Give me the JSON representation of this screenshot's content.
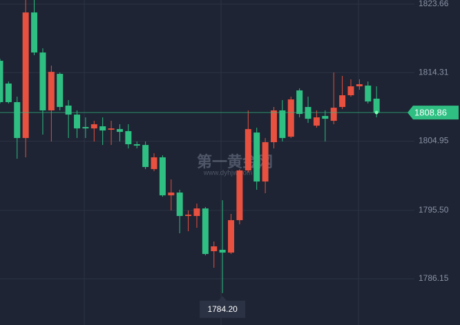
{
  "chart_data": {
    "type": "candlestick",
    "ylim": [
      1779.84,
      1824.23
    ],
    "yticks": [
      1823.66,
      1814.31,
      1804.95,
      {
        "value": 1795.5,
        "label": "1795.50"
      },
      1786.15
    ],
    "grid": true,
    "up_color": "#e8503f",
    "down_color": "#2fbf83",
    "open": [
      1815.93,
      1812.82,
      1810.28,
      1805.38,
      1822.53,
      1817.06,
      1809.15,
      1814.14,
      1809.81,
      1808.58,
      1806.88,
      1806.69,
      1806.98,
      1806.51,
      1806.6,
      1806.32,
      1804.53,
      1804.43,
      1801.13,
      1802.74,
      1797.55,
      1797.93,
      1794.73,
      1794.73,
      1795.76,
      1789.92,
      1790.11,
      1789.73,
      1794.16,
      1800.95,
      1806.13,
      1799.44,
      1804.81,
      1809.15,
      1805.56,
      1811.88,
      1809.62,
      1807.07,
      1808.39,
      1807.73,
      1809.62,
      1811.22,
      1812.44,
      1812.54,
      1810.75
    ],
    "high": [
      1816.21,
      1813.1,
      1811.03,
      1824.23,
      1824.23,
      1817.63,
      1815.27,
      1814.33,
      1810.56,
      1809.15,
      1808.2,
      1807.73,
      1808.2,
      1807.73,
      1807.26,
      1807.26,
      1804.9,
      1804.9,
      1803.3,
      1803.02,
      1799.72,
      1798.31,
      1795.48,
      1796.42,
      1795.95,
      1791.24,
      1796.89,
      1795.01,
      1801.13,
      1809.15,
      1806.79,
      1805.38,
      1809.62,
      1810.56,
      1811.03,
      1812.16,
      1811.03,
      1809.15,
      1809.15,
      1814.33,
      1813.86,
      1813.39,
      1813.39,
      1813.1,
      1812.44
    ],
    "low": [
      1810.09,
      1810.09,
      1802.55,
      1802.74,
      1816.69,
      1805.85,
      1804.9,
      1809.15,
      1805.38,
      1805.38,
      1805.38,
      1804.9,
      1804.43,
      1804.43,
      1804.9,
      1803.96,
      1803.96,
      1801.13,
      1800.85,
      1797.36,
      1795.48,
      1792.37,
      1792.65,
      1793.12,
      1789.35,
      1787.66,
      1784.2,
      1789.54,
      1793.59,
      1800.66,
      1798.31,
      1797.84,
      1803.96,
      1804.9,
      1805.38,
      1808.2,
      1807.45,
      1806.79,
      1804.9,
      1807.26,
      1809.33,
      1811.03,
      1811.97,
      1810.09,
      1808.2
    ],
    "close": [
      1810.28,
      1810.28,
      1805.38,
      1822.53,
      1817.06,
      1809.15,
      1814.42,
      1809.62,
      1808.58,
      1806.69,
      1806.69,
      1807.26,
      1806.41,
      1806.69,
      1806.22,
      1804.53,
      1804.34,
      1801.42,
      1802.74,
      1797.55,
      1797.93,
      1794.73,
      1794.91,
      1795.76,
      1789.54,
      1790.58,
      1789.73,
      1794.16,
      1800.95,
      1806.6,
      1799.44,
      1804.81,
      1809.15,
      1805.38,
      1810.65,
      1808.67,
      1808.01,
      1808.2,
      1808.01,
      1809.52,
      1811.22,
      1812.44,
      1812.73,
      1810.37,
      1808.86
    ],
    "current_price": 1808.86,
    "low_marker": {
      "value": 1784.2,
      "label": "1784.20"
    },
    "watermark": "第一黄金网",
    "watermark_url": "www.dyhjw.com"
  }
}
